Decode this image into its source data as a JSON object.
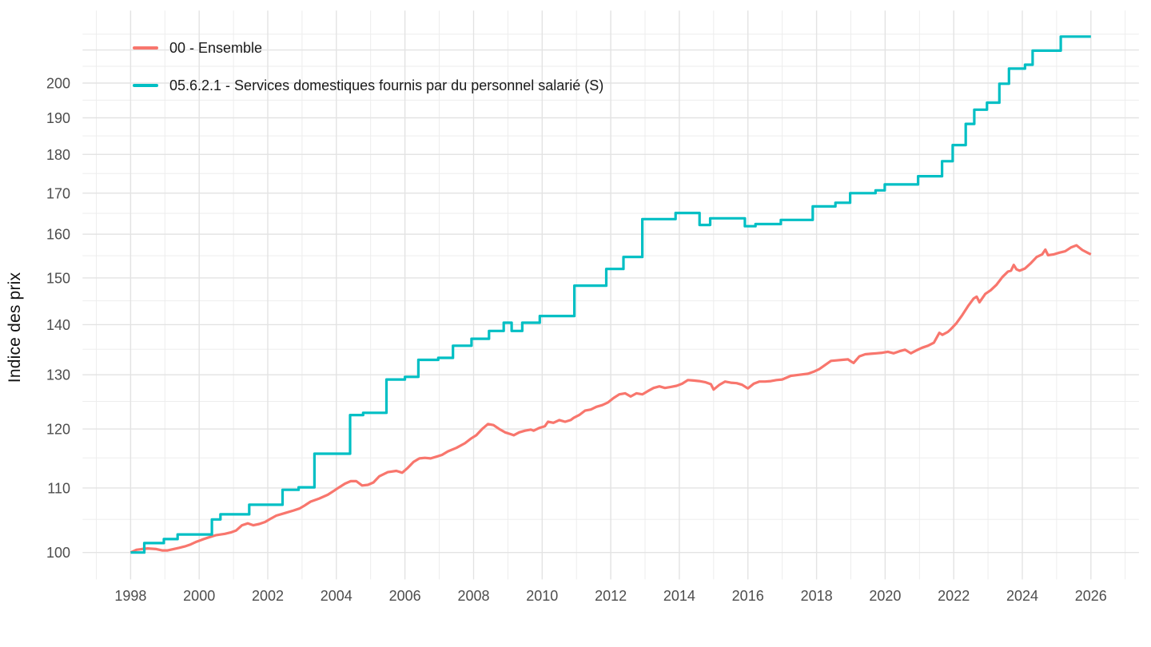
{
  "chart_data": {
    "type": "line",
    "title": "",
    "xlabel": "",
    "ylabel": "Indice des prix",
    "y_scale": "log",
    "x_range": [
      1996.6,
      2027.4
    ],
    "y_range": [
      96.1,
      222.6
    ],
    "x_ticks": [
      1998,
      2000,
      2002,
      2004,
      2006,
      2008,
      2010,
      2012,
      2014,
      2016,
      2018,
      2020,
      2022,
      2024,
      2026
    ],
    "y_ticks": [
      100,
      110,
      120,
      130,
      140,
      150,
      160,
      170,
      180,
      190,
      200
    ],
    "x_grid_major": [
      1998,
      2000,
      2002,
      2004,
      2006,
      2008,
      2010,
      2012,
      2014,
      2016,
      2018,
      2020,
      2022,
      2024,
      2026
    ],
    "x_grid_minor": [
      1997,
      1999,
      2001,
      2003,
      2005,
      2007,
      2009,
      2011,
      2013,
      2015,
      2017,
      2019,
      2021,
      2023,
      2025,
      2027
    ],
    "y_grid_major": [
      100,
      110,
      120,
      130,
      140,
      150,
      160,
      170,
      180,
      190,
      200,
      210
    ],
    "y_grid_minor": [
      105,
      115,
      125,
      135,
      145,
      155,
      165,
      175,
      185,
      195,
      205,
      215
    ],
    "grid": true,
    "legend_position": "top-left inside",
    "colors": {
      "background": "#FFFFFF",
      "grid_major": "#E3E3E3",
      "grid_minor": "#EDEDED",
      "tick_label": "#4D4D4D",
      "axis_title": "#111111",
      "legend_text": "#1A1A1A"
    },
    "series": [
      {
        "name": "00 - Ensemble",
        "color": "#F8766D",
        "style": "line",
        "points": [
          [
            1998.0,
            100.0
          ],
          [
            1998.17,
            100.4
          ],
          [
            1998.33,
            100.5
          ],
          [
            1998.5,
            100.6
          ],
          [
            1998.75,
            100.5
          ],
          [
            1998.92,
            100.3
          ],
          [
            1999.08,
            100.3
          ],
          [
            1999.25,
            100.5
          ],
          [
            1999.42,
            100.7
          ],
          [
            1999.58,
            100.9
          ],
          [
            1999.75,
            101.2
          ],
          [
            1999.92,
            101.6
          ],
          [
            2000.08,
            101.9
          ],
          [
            2000.25,
            102.2
          ],
          [
            2000.5,
            102.6
          ],
          [
            2000.75,
            102.8
          ],
          [
            2000.92,
            103.0
          ],
          [
            2001.08,
            103.3
          ],
          [
            2001.25,
            104.1
          ],
          [
            2001.42,
            104.4
          ],
          [
            2001.58,
            104.1
          ],
          [
            2001.75,
            104.3
          ],
          [
            2001.92,
            104.6
          ],
          [
            2002.08,
            105.1
          ],
          [
            2002.25,
            105.6
          ],
          [
            2002.5,
            106.0
          ],
          [
            2002.75,
            106.4
          ],
          [
            2002.92,
            106.7
          ],
          [
            2003.08,
            107.2
          ],
          [
            2003.25,
            107.8
          ],
          [
            2003.5,
            108.3
          ],
          [
            2003.75,
            108.9
          ],
          [
            2003.92,
            109.5
          ],
          [
            2004.08,
            110.1
          ],
          [
            2004.25,
            110.7
          ],
          [
            2004.42,
            111.1
          ],
          [
            2004.58,
            111.1
          ],
          [
            2004.75,
            110.4
          ],
          [
            2004.92,
            110.5
          ],
          [
            2005.08,
            110.9
          ],
          [
            2005.25,
            111.9
          ],
          [
            2005.5,
            112.6
          ],
          [
            2005.75,
            112.8
          ],
          [
            2005.92,
            112.5
          ],
          [
            2006.08,
            113.3
          ],
          [
            2006.25,
            114.3
          ],
          [
            2006.42,
            114.9
          ],
          [
            2006.58,
            115.0
          ],
          [
            2006.75,
            114.9
          ],
          [
            2006.92,
            115.2
          ],
          [
            2007.08,
            115.5
          ],
          [
            2007.25,
            116.1
          ],
          [
            2007.5,
            116.7
          ],
          [
            2007.75,
            117.5
          ],
          [
            2007.92,
            118.3
          ],
          [
            2008.08,
            118.9
          ],
          [
            2008.25,
            120.0
          ],
          [
            2008.42,
            120.9
          ],
          [
            2008.58,
            120.7
          ],
          [
            2008.75,
            120.0
          ],
          [
            2008.92,
            119.4
          ],
          [
            2009.08,
            119.1
          ],
          [
            2009.17,
            118.9
          ],
          [
            2009.33,
            119.4
          ],
          [
            2009.5,
            119.7
          ],
          [
            2009.67,
            119.9
          ],
          [
            2009.75,
            119.7
          ],
          [
            2009.92,
            120.2
          ],
          [
            2010.08,
            120.5
          ],
          [
            2010.17,
            121.3
          ],
          [
            2010.33,
            121.1
          ],
          [
            2010.5,
            121.6
          ],
          [
            2010.67,
            121.3
          ],
          [
            2010.83,
            121.6
          ],
          [
            2010.92,
            122.0
          ],
          [
            2011.08,
            122.5
          ],
          [
            2011.25,
            123.3
          ],
          [
            2011.42,
            123.5
          ],
          [
            2011.58,
            124.0
          ],
          [
            2011.75,
            124.3
          ],
          [
            2011.92,
            124.8
          ],
          [
            2012.08,
            125.6
          ],
          [
            2012.25,
            126.3
          ],
          [
            2012.42,
            126.5
          ],
          [
            2012.58,
            125.9
          ],
          [
            2012.75,
            126.5
          ],
          [
            2012.92,
            126.3
          ],
          [
            2013.08,
            126.9
          ],
          [
            2013.25,
            127.5
          ],
          [
            2013.42,
            127.8
          ],
          [
            2013.58,
            127.5
          ],
          [
            2013.75,
            127.7
          ],
          [
            2013.92,
            127.9
          ],
          [
            2014.08,
            128.3
          ],
          [
            2014.25,
            129.0
          ],
          [
            2014.42,
            128.9
          ],
          [
            2014.58,
            128.8
          ],
          [
            2014.75,
            128.6
          ],
          [
            2014.92,
            128.2
          ],
          [
            2015.0,
            127.2
          ],
          [
            2015.17,
            128.1
          ],
          [
            2015.33,
            128.7
          ],
          [
            2015.5,
            128.5
          ],
          [
            2015.67,
            128.4
          ],
          [
            2015.83,
            128.1
          ],
          [
            2016.0,
            127.4
          ],
          [
            2016.17,
            128.3
          ],
          [
            2016.33,
            128.7
          ],
          [
            2016.5,
            128.7
          ],
          [
            2016.67,
            128.8
          ],
          [
            2016.83,
            129.0
          ],
          [
            2017.0,
            129.1
          ],
          [
            2017.25,
            129.8
          ],
          [
            2017.5,
            130.0
          ],
          [
            2017.75,
            130.2
          ],
          [
            2017.92,
            130.6
          ],
          [
            2018.08,
            131.1
          ],
          [
            2018.25,
            131.9
          ],
          [
            2018.42,
            132.7
          ],
          [
            2018.58,
            132.8
          ],
          [
            2018.75,
            132.9
          ],
          [
            2018.92,
            133.0
          ],
          [
            2019.0,
            132.6
          ],
          [
            2019.08,
            132.3
          ],
          [
            2019.25,
            133.6
          ],
          [
            2019.42,
            134.0
          ],
          [
            2019.58,
            134.1
          ],
          [
            2019.75,
            134.2
          ],
          [
            2019.92,
            134.3
          ],
          [
            2020.08,
            134.5
          ],
          [
            2020.25,
            134.2
          ],
          [
            2020.42,
            134.6
          ],
          [
            2020.58,
            134.9
          ],
          [
            2020.75,
            134.2
          ],
          [
            2020.92,
            134.8
          ],
          [
            2021.08,
            135.3
          ],
          [
            2021.25,
            135.7
          ],
          [
            2021.42,
            136.3
          ],
          [
            2021.58,
            138.3
          ],
          [
            2021.67,
            137.9
          ],
          [
            2021.83,
            138.5
          ],
          [
            2021.92,
            139.1
          ],
          [
            2022.08,
            140.3
          ],
          [
            2022.25,
            142.0
          ],
          [
            2022.42,
            143.9
          ],
          [
            2022.58,
            145.5
          ],
          [
            2022.67,
            145.9
          ],
          [
            2022.75,
            144.7
          ],
          [
            2022.92,
            146.5
          ],
          [
            2023.08,
            147.3
          ],
          [
            2023.25,
            148.5
          ],
          [
            2023.42,
            150.2
          ],
          [
            2023.58,
            151.4
          ],
          [
            2023.67,
            151.6
          ],
          [
            2023.75,
            152.9
          ],
          [
            2023.83,
            151.9
          ],
          [
            2023.92,
            151.6
          ],
          [
            2024.08,
            152.1
          ],
          [
            2024.25,
            153.3
          ],
          [
            2024.42,
            154.7
          ],
          [
            2024.58,
            155.3
          ],
          [
            2024.67,
            156.4
          ],
          [
            2024.75,
            155.1
          ],
          [
            2024.92,
            155.3
          ],
          [
            2025.08,
            155.7
          ],
          [
            2025.25,
            156.0
          ],
          [
            2025.42,
            156.9
          ],
          [
            2025.58,
            157.4
          ],
          [
            2025.67,
            156.8
          ],
          [
            2025.75,
            156.3
          ],
          [
            2025.92,
            155.6
          ],
          [
            2026.0,
            155.3
          ]
        ]
      },
      {
        "name": "05.6.2.1 - Services domestiques fournis par du personnel salarié (S)",
        "color": "#00BFC4",
        "style": "step",
        "points": [
          [
            1998.0,
            100.0
          ],
          [
            1998.4,
            101.4
          ],
          [
            1998.97,
            102.0
          ],
          [
            1999.37,
            102.7
          ],
          [
            2000.37,
            105.0
          ],
          [
            2000.62,
            105.8
          ],
          [
            2001.46,
            107.3
          ],
          [
            2002.43,
            109.7
          ],
          [
            2002.9,
            110.1
          ],
          [
            2003.36,
            115.7
          ],
          [
            2004.4,
            122.5
          ],
          [
            2004.78,
            122.9
          ],
          [
            2005.46,
            129.1
          ],
          [
            2006.0,
            129.6
          ],
          [
            2006.39,
            132.9
          ],
          [
            2006.97,
            133.3
          ],
          [
            2007.4,
            135.7
          ],
          [
            2007.94,
            137.1
          ],
          [
            2008.45,
            138.7
          ],
          [
            2008.88,
            140.4
          ],
          [
            2009.11,
            138.7
          ],
          [
            2009.42,
            140.4
          ],
          [
            2009.93,
            141.8
          ],
          [
            2010.94,
            148.3
          ],
          [
            2011.87,
            152.0
          ],
          [
            2012.37,
            154.7
          ],
          [
            2012.92,
            163.6
          ],
          [
            2013.89,
            165.1
          ],
          [
            2014.59,
            162.2
          ],
          [
            2014.9,
            163.8
          ],
          [
            2015.91,
            161.9
          ],
          [
            2016.22,
            162.4
          ],
          [
            2016.96,
            163.4
          ],
          [
            2017.89,
            166.7
          ],
          [
            2018.55,
            167.6
          ],
          [
            2018.98,
            170.0
          ],
          [
            2019.72,
            170.7
          ],
          [
            2019.99,
            172.2
          ],
          [
            2020.96,
            174.3
          ],
          [
            2021.66,
            178.2
          ],
          [
            2021.97,
            182.5
          ],
          [
            2022.35,
            188.3
          ],
          [
            2022.6,
            192.3
          ],
          [
            2022.97,
            194.3
          ],
          [
            2023.33,
            199.8
          ],
          [
            2023.61,
            204.3
          ],
          [
            2024.08,
            205.5
          ],
          [
            2024.3,
            209.8
          ],
          [
            2025.12,
            214.2
          ],
          [
            2026.0,
            214.2
          ]
        ]
      }
    ]
  }
}
